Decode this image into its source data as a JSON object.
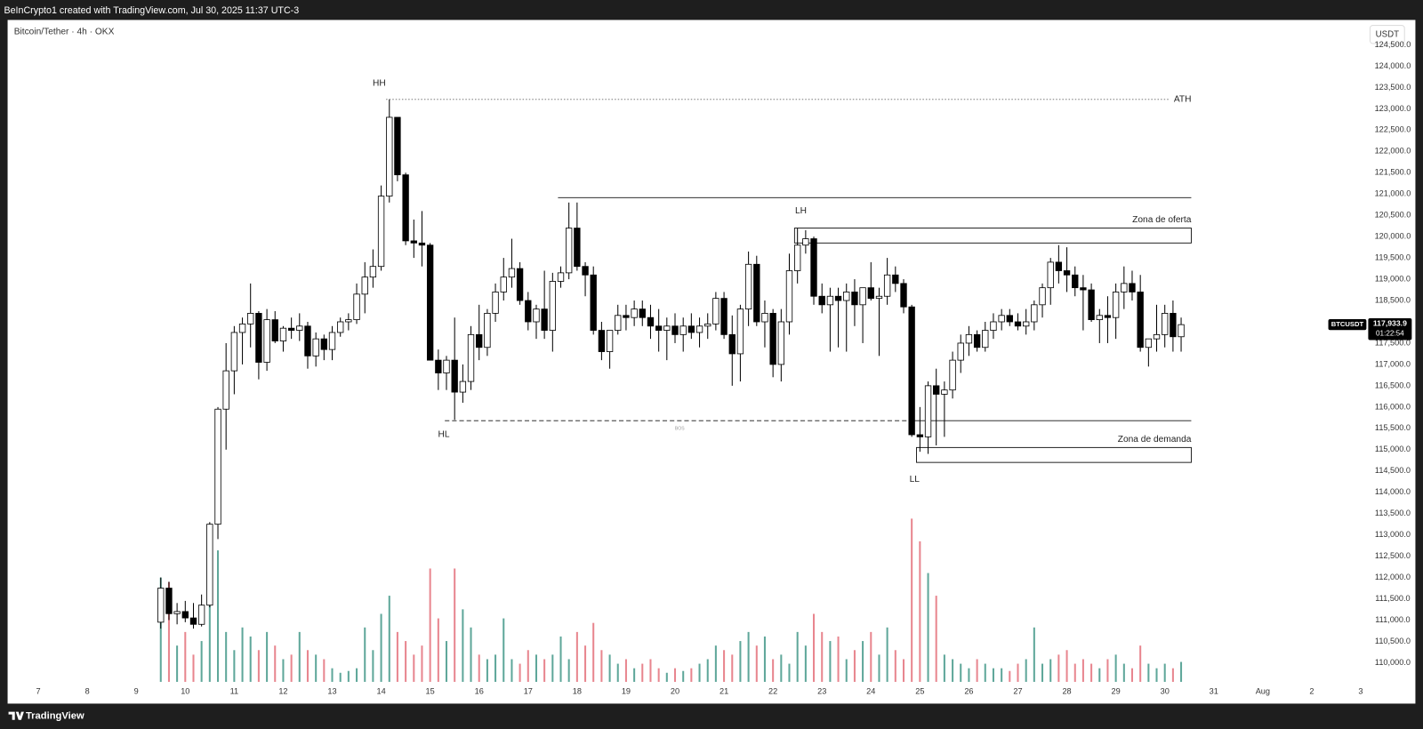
{
  "header": {
    "text": "BeInCrypto1 created with TradingView.com, Jul 30, 2025 11:37 UTC-3"
  },
  "footer": {
    "brand": "TradingView"
  },
  "chart_data": {
    "type": "candlestick",
    "title": "Bitcoin/Tether · 4h · OKX",
    "currency": "USDT",
    "up_color": "#ffffff",
    "down_color": "#000000",
    "wick_color": "#000000",
    "volume_up_color": "#5fa79a",
    "volume_down_color": "#e8868f",
    "grid": false,
    "xlim": [
      6.41,
      34.19
    ],
    "ylim": [
      109550,
      125085
    ],
    "xticks": [
      7,
      8,
      9,
      10,
      11,
      12,
      13,
      14,
      15,
      16,
      17,
      18,
      19,
      20,
      21,
      22,
      23,
      24,
      25,
      26,
      27,
      28,
      29,
      30,
      31,
      {
        "value": 32,
        "label": "Aug"
      },
      {
        "value": 33,
        "label": "2"
      },
      {
        "value": 34,
        "label": "3"
      }
    ],
    "yticks": [
      {
        "value": 110000,
        "label": "110,000.0"
      },
      {
        "value": 110500,
        "label": "110,500.0"
      },
      {
        "value": 111000,
        "label": "111,000.0"
      },
      {
        "value": 111500,
        "label": "111,500.0"
      },
      {
        "value": 112000,
        "label": "112,000.0"
      },
      {
        "value": 112500,
        "label": "112,500.0"
      },
      {
        "value": 113000,
        "label": "113,000.0"
      },
      {
        "value": 113500,
        "label": "113,500.0"
      },
      {
        "value": 114000,
        "label": "114,000.0"
      },
      {
        "value": 114500,
        "label": "114,500.0"
      },
      {
        "value": 115000,
        "label": "115,000.0"
      },
      {
        "value": 115500,
        "label": "115,500.0"
      },
      {
        "value": 116000,
        "label": "116,000.0"
      },
      {
        "value": 116500,
        "label": "116,500.0"
      },
      {
        "value": 117000,
        "label": "117,000.0"
      },
      {
        "value": 117500,
        "label": "117,500.0"
      },
      {
        "value": 118000,
        "label": "118,000.0"
      },
      {
        "value": 118500,
        "label": "118,500.0"
      },
      {
        "value": 119000,
        "label": "119,000.0"
      },
      {
        "value": 119500,
        "label": "119,500.0"
      },
      {
        "value": 120000,
        "label": "120,000.0"
      },
      {
        "value": 120500,
        "label": "120,500.0"
      },
      {
        "value": 121000,
        "label": "121,000.0"
      },
      {
        "value": 121500,
        "label": "121,500.0"
      },
      {
        "value": 122000,
        "label": "122,000.0"
      },
      {
        "value": 122500,
        "label": "122,500.0"
      },
      {
        "value": 123000,
        "label": "123,000.0"
      },
      {
        "value": 123500,
        "label": "123,500.0"
      },
      {
        "value": 124000,
        "label": "124,000.0"
      },
      {
        "value": 124500,
        "label": "124,500.0"
      }
    ],
    "x": [
      9.5,
      9.667,
      9.833,
      10,
      10.167,
      10.333,
      10.5,
      10.667,
      10.833,
      11,
      11.167,
      11.333,
      11.5,
      11.667,
      11.833,
      12,
      12.167,
      12.333,
      12.5,
      12.667,
      12.833,
      13,
      13.167,
      13.333,
      13.5,
      13.667,
      13.833,
      14,
      14.167,
      14.333,
      14.5,
      14.667,
      14.833,
      15,
      15.167,
      15.333,
      15.5,
      15.667,
      15.833,
      16,
      16.167,
      16.333,
      16.5,
      16.667,
      16.833,
      17,
      17.167,
      17.333,
      17.5,
      17.667,
      17.833,
      18,
      18.167,
      18.333,
      18.5,
      18.667,
      18.833,
      19,
      19.167,
      19.333,
      19.5,
      19.667,
      19.833,
      20,
      20.167,
      20.333,
      20.5,
      20.667,
      20.833,
      21,
      21.167,
      21.333,
      21.5,
      21.667,
      21.833,
      22,
      22.167,
      22.333,
      22.5,
      22.667,
      22.833,
      23,
      23.167,
      23.333,
      23.5,
      23.667,
      23.833,
      24,
      24.167,
      24.333,
      24.5,
      24.667,
      24.833,
      25,
      25.167,
      25.333,
      25.5,
      25.667,
      25.833,
      26,
      26.167,
      26.333,
      26.5,
      26.667,
      26.833,
      27,
      27.167,
      27.333,
      27.5,
      27.667,
      27.833,
      28,
      28.167,
      28.333,
      28.5,
      28.667,
      28.833,
      29,
      29.167,
      29.333,
      29.5,
      29.667,
      29.833,
      30,
      30.167,
      30.333
    ],
    "open": [
      110950,
      111750,
      111150,
      111200,
      111050,
      110900,
      111350,
      113250,
      115950,
      116850,
      117750,
      117950,
      118200,
      117050,
      118050,
      117550,
      117850,
      117800,
      117900,
      117200,
      117600,
      117350,
      117750,
      118000,
      118050,
      118650,
      119050,
      119300,
      120950,
      122800,
      121450,
      119900,
      119850,
      119800,
      117100,
      116800,
      117100,
      116350,
      116600,
      117700,
      117400,
      118200,
      118700,
      119050,
      119250,
      118500,
      118000,
      118300,
      117800,
      118950,
      119150,
      120200,
      119300,
      119100,
      117800,
      117300,
      117800,
      118150,
      118100,
      118300,
      118100,
      117900,
      117800,
      117900,
      117700,
      117900,
      117750,
      117900,
      117950,
      118550,
      117700,
      117250,
      118300,
      119350,
      118000,
      118200,
      117000,
      118000,
      119200,
      119800,
      119950,
      118600,
      118400,
      118600,
      118500,
      118700,
      118400,
      118800,
      118550,
      118600,
      119100,
      118900,
      118350,
      115350,
      115300,
      116500,
      116300,
      116400,
      117100,
      117500,
      117700,
      117400,
      117800,
      118000,
      118150,
      118000,
      117900,
      118000,
      118400,
      118800,
      119400,
      119200,
      119100,
      118800,
      118750,
      118050,
      118150,
      118100,
      118700,
      118900,
      118700,
      117400,
      117600,
      117700,
      118200,
      117650
    ],
    "high": [
      112000,
      111900,
      111400,
      111450,
      111400,
      111600,
      113300,
      116000,
      117500,
      117900,
      118100,
      118900,
      118250,
      118300,
      118250,
      117900,
      118100,
      118200,
      118000,
      117750,
      117700,
      117900,
      118100,
      118200,
      118900,
      119400,
      119700,
      121200,
      123220,
      122800,
      121500,
      120400,
      120600,
      119850,
      117350,
      117200,
      118100,
      117000,
      117900,
      118400,
      118300,
      118900,
      119500,
      119950,
      119400,
      118700,
      118400,
      119200,
      119150,
      119300,
      120800,
      120800,
      119400,
      119300,
      118000,
      117800,
      118400,
      118400,
      118500,
      118500,
      118400,
      118300,
      118100,
      118200,
      118100,
      118200,
      118100,
      118200,
      118700,
      118700,
      118150,
      118400,
      119650,
      119550,
      118500,
      118300,
      118300,
      119600,
      120200,
      120150,
      120000,
      118900,
      118800,
      118800,
      118900,
      119000,
      118800,
      119400,
      118800,
      119500,
      119300,
      119000,
      118400,
      116000,
      116600,
      116900,
      116600,
      117300,
      117700,
      117900,
      117800,
      118000,
      118200,
      118300,
      118300,
      118200,
      118300,
      118500,
      118900,
      119500,
      119800,
      119750,
      119300,
      119100,
      118900,
      118300,
      118600,
      118900,
      119300,
      119200,
      119100,
      117600,
      118400,
      118400,
      118500,
      118100
    ],
    "low": [
      110800,
      111000,
      110900,
      110950,
      110800,
      110850,
      111300,
      112900,
      115000,
      116300,
      117000,
      117400,
      116650,
      116850,
      117500,
      117300,
      117600,
      117550,
      116900,
      116950,
      117100,
      117100,
      117650,
      117800,
      117950,
      118200,
      118800,
      119200,
      120800,
      121300,
      119800,
      119500,
      119300,
      117100,
      116400,
      116400,
      115700,
      116100,
      116400,
      117100,
      117200,
      118000,
      118500,
      118800,
      118400,
      117800,
      117600,
      117600,
      117300,
      118800,
      119000,
      119200,
      118600,
      117700,
      117100,
      116900,
      117700,
      117800,
      117900,
      117900,
      117600,
      117300,
      117100,
      117500,
      117300,
      117600,
      117400,
      117600,
      117800,
      117600,
      116500,
      116600,
      117900,
      117900,
      117400,
      116700,
      116600,
      117700,
      118900,
      119600,
      118400,
      118200,
      117300,
      117400,
      117300,
      117900,
      117500,
      118500,
      117200,
      118400,
      118700,
      118200,
      115300,
      114950,
      114900,
      115100,
      115300,
      116200,
      116800,
      117200,
      117300,
      117300,
      117600,
      117800,
      117900,
      117800,
      117700,
      117800,
      118100,
      118400,
      118900,
      118700,
      118600,
      117800,
      118000,
      117500,
      117500,
      117600,
      118300,
      118500,
      117300,
      116950,
      117300,
      117400,
      117300,
      117300
    ],
    "close": [
      111750,
      111150,
      111200,
      111050,
      110900,
      111350,
      113250,
      115950,
      116850,
      117750,
      117950,
      118200,
      117050,
      118050,
      117550,
      117850,
      117800,
      117900,
      117200,
      117600,
      117350,
      117750,
      118000,
      118050,
      118650,
      119050,
      119300,
      120950,
      122800,
      121450,
      119900,
      119850,
      119800,
      117100,
      116800,
      117100,
      116350,
      116600,
      117700,
      117400,
      118200,
      118700,
      119050,
      119250,
      118500,
      118000,
      118300,
      117800,
      118950,
      119150,
      120200,
      119300,
      119100,
      117800,
      117300,
      117800,
      118150,
      118100,
      118300,
      118100,
      117900,
      117800,
      117900,
      117700,
      117900,
      117750,
      117900,
      117950,
      118550,
      117700,
      117250,
      118300,
      119350,
      118000,
      118200,
      117000,
      118000,
      119200,
      119800,
      119950,
      118600,
      118400,
      118600,
      118500,
      118700,
      118400,
      118800,
      118550,
      118600,
      119100,
      118900,
      118350,
      115350,
      115300,
      116500,
      116300,
      116400,
      117100,
      117500,
      117700,
      117400,
      117800,
      118000,
      118150,
      118000,
      117900,
      118000,
      118400,
      118800,
      119400,
      119200,
      119100,
      118800,
      118750,
      118050,
      118150,
      118100,
      118700,
      118900,
      118700,
      117400,
      117600,
      117700,
      118200,
      117650,
      117933.9
    ],
    "volume": [
      115,
      110,
      40,
      55,
      30,
      45,
      100,
      145,
      55,
      35,
      60,
      50,
      35,
      55,
      40,
      25,
      30,
      55,
      35,
      30,
      25,
      15,
      10,
      12,
      15,
      60,
      35,
      75,
      95,
      55,
      45,
      30,
      40,
      125,
      70,
      45,
      125,
      80,
      60,
      30,
      25,
      30,
      70,
      25,
      20,
      35,
      30,
      25,
      30,
      50,
      25,
      55,
      40,
      65,
      35,
      30,
      20,
      25,
      15,
      20,
      25,
      15,
      10,
      15,
      12,
      15,
      20,
      25,
      40,
      35,
      30,
      45,
      55,
      40,
      50,
      25,
      30,
      20,
      55,
      40,
      75,
      55,
      45,
      50,
      25,
      35,
      45,
      55,
      30,
      60,
      35,
      25,
      180,
      155,
      120,
      95,
      30,
      25,
      20,
      15,
      25,
      20,
      15,
      15,
      12,
      20,
      25,
      60,
      20,
      25,
      30,
      35,
      20,
      25,
      20,
      15,
      25,
      30,
      20,
      15,
      40,
      20,
      15,
      20,
      15,
      22
    ],
    "lines": [
      {
        "label": "ATH",
        "value": 123220,
        "from": 14.1,
        "to": 30.11,
        "style": "dotted"
      },
      {
        "value": 120915,
        "from": 17.61,
        "to": 30.54,
        "style": "solid"
      },
      {
        "label": "BOS",
        "value": 115680,
        "from": 15.3,
        "to": 24.89,
        "style": "dashed"
      },
      {
        "value": 115680,
        "from": 24.89,
        "to": 30.54,
        "style": "solid"
      }
    ],
    "zones": [
      {
        "label": "Zona de oferta",
        "range": [
          119850,
          120200
        ],
        "from": 22.44,
        "to": 30.54
      },
      {
        "label": "Zona de demanda",
        "range": [
          114700,
          115050
        ],
        "from": 24.93,
        "to": 30.54
      }
    ],
    "swings": [
      {
        "label": "HH",
        "x": 13.96,
        "value": 123600
      },
      {
        "label": "LH",
        "x": 22.57,
        "value": 120600
      },
      {
        "label": "HL",
        "x": 15.28,
        "value": 115350
      },
      {
        "label": "LL",
        "x": 24.89,
        "value": 114300
      }
    ],
    "last": {
      "symbol": "BTCUSDT",
      "price": {
        "value": 117933.9,
        "label": "117,933.9"
      },
      "countdown": "01:22:54"
    }
  }
}
